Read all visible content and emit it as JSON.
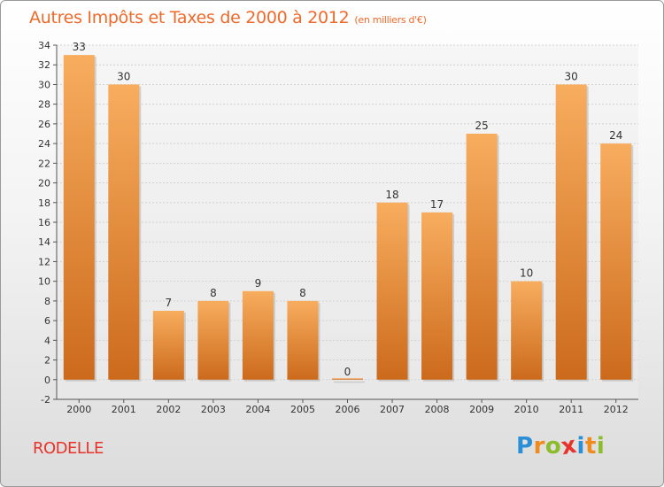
{
  "header": {
    "title": "Autres Impôts et Taxes de 2000 à 2012",
    "subtitle": "(en milliers d'€)"
  },
  "footer": {
    "commune": "RODELLE",
    "logo_text": "Proxiti",
    "logo_letters": [
      {
        "char": "P",
        "color": "#2a8fd6"
      },
      {
        "char": "r",
        "color": "#f08a1c"
      },
      {
        "char": "o",
        "color": "#8cbc2c"
      },
      {
        "char": "x",
        "color": "#e8332a"
      },
      {
        "char": "i",
        "color": "#2a8fd6"
      },
      {
        "char": "t",
        "color": "#f08a1c"
      },
      {
        "char": "i",
        "color": "#8cbc2c"
      }
    ]
  },
  "chart_data": {
    "type": "bar",
    "title": "Autres Impôts et Taxes de 2000 à 2012",
    "subtitle": "(en milliers d'€)",
    "xlabel": "",
    "ylabel": "",
    "categories": [
      "2000",
      "2001",
      "2002",
      "2003",
      "2004",
      "2005",
      "2006",
      "2007",
      "2008",
      "2009",
      "2010",
      "2011",
      "2012"
    ],
    "values": [
      33,
      30,
      7,
      8,
      9,
      8,
      0,
      18,
      17,
      25,
      10,
      30,
      24
    ],
    "value_labels": [
      "33",
      "30",
      "7",
      "8",
      "9",
      "8",
      "0",
      "18",
      "17",
      "25",
      "10",
      "30",
      "24"
    ],
    "ylim": [
      -2,
      34
    ],
    "yticks": [
      -2,
      0,
      2,
      4,
      6,
      8,
      10,
      12,
      14,
      16,
      18,
      20,
      22,
      24,
      26,
      28,
      30,
      32,
      34
    ],
    "grid": true,
    "bar_color": "#f0a050",
    "bar_color_dark": "#cc6a1c"
  }
}
